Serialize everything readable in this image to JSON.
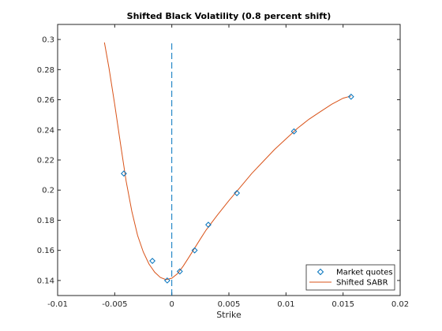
{
  "chart_data": {
    "type": "line",
    "title": "Shifted Black Volatility (0.8 percent shift)",
    "xlabel": "Strike",
    "ylabel": "",
    "xlim": [
      -0.01,
      0.02
    ],
    "ylim": [
      0.13,
      0.31
    ],
    "x_ticks": [
      -0.01,
      -0.005,
      0,
      0.005,
      0.01,
      0.015,
      0.02
    ],
    "x_tick_labels": [
      "-0.01",
      "-0.005",
      "0",
      "0.005",
      "0.01",
      "0.015",
      "0.02"
    ],
    "y_ticks": [
      0.14,
      0.16,
      0.18,
      0.2,
      0.22,
      0.24,
      0.26,
      0.28,
      0.3
    ],
    "y_tick_labels": [
      "0.14",
      "0.16",
      "0.18",
      "0.2",
      "0.22",
      "0.24",
      "0.26",
      "0.28",
      "0.3"
    ],
    "legend_position": "bottom-right",
    "series": [
      {
        "name": "Market quotes",
        "kind": "markers",
        "marker": "diamond",
        "color": "#0072bd",
        "x": [
          -0.0042,
          -0.0017,
          -0.0004,
          0.0007,
          0.002,
          0.0032,
          0.0057,
          0.0107,
          0.0157
        ],
        "y": [
          0.211,
          0.153,
          0.14,
          0.146,
          0.16,
          0.177,
          0.198,
          0.239,
          0.262
        ]
      },
      {
        "name": "Shifted SABR",
        "kind": "line",
        "color": "#d95319",
        "x": [
          -0.0059,
          -0.0055,
          -0.005,
          -0.0045,
          -0.004,
          -0.0035,
          -0.003,
          -0.0025,
          -0.002,
          -0.0015,
          -0.001,
          -0.0005,
          0.0,
          0.0005,
          0.001,
          0.0015,
          0.002,
          0.0025,
          0.003,
          0.0035,
          0.004,
          0.005,
          0.006,
          0.007,
          0.008,
          0.009,
          0.01,
          0.011,
          0.012,
          0.013,
          0.014,
          0.015,
          0.0157
        ],
        "y": [
          0.298,
          0.281,
          0.257,
          0.231,
          0.206,
          0.186,
          0.17,
          0.159,
          0.151,
          0.1455,
          0.142,
          0.1405,
          0.1415,
          0.1445,
          0.1495,
          0.1555,
          0.1615,
          0.1675,
          0.1735,
          0.1785,
          0.1835,
          0.193,
          0.202,
          0.211,
          0.219,
          0.227,
          0.234,
          0.241,
          0.247,
          0.252,
          0.257,
          0.261,
          0.2625
        ]
      }
    ],
    "reference_line": {
      "x": 0,
      "y_range": [
        0.13,
        0.298
      ],
      "style": "dashed",
      "color": "#0072bd"
    }
  }
}
